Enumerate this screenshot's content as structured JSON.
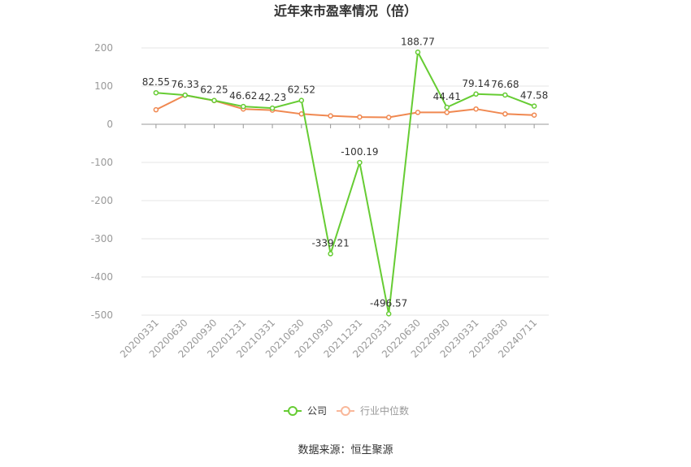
{
  "chart_data": {
    "type": "line",
    "title": "近年来市盈率情况（倍）",
    "categories": [
      "20200331",
      "20200630",
      "20200930",
      "20201231",
      "20210331",
      "20210630",
      "20210930",
      "20211231",
      "20220331",
      "20220630",
      "20220930",
      "20230331",
      "20230630",
      "20240711"
    ],
    "series": [
      {
        "name": "公司",
        "color": "#66cc33",
        "values": [
          82.55,
          76.33,
          62.25,
          46.62,
          42.23,
          62.52,
          -339.21,
          -100.19,
          -496.57,
          188.77,
          44.41,
          79.14,
          76.68,
          47.58
        ],
        "labels": [
          "82.55",
          "76.33",
          "62.25",
          "46.62",
          "42.23",
          "62.52",
          "-339.21",
          "-100.19",
          "-496.57",
          "188.77",
          "44.41",
          "79.14",
          "76.68",
          "47.58"
        ]
      },
      {
        "name": "行业中位数",
        "color": "#f08850",
        "values": [
          38,
          76,
          62,
          40,
          37,
          27,
          22,
          19,
          18,
          31,
          31,
          40,
          27,
          24
        ]
      }
    ],
    "ylim": [
      -500,
      200
    ],
    "yticks": [
      200,
      100,
      0,
      -100,
      -200,
      -300,
      -400,
      -500
    ],
    "grid": true,
    "legend": "bottom"
  },
  "source": "数据来源：恒生聚源"
}
